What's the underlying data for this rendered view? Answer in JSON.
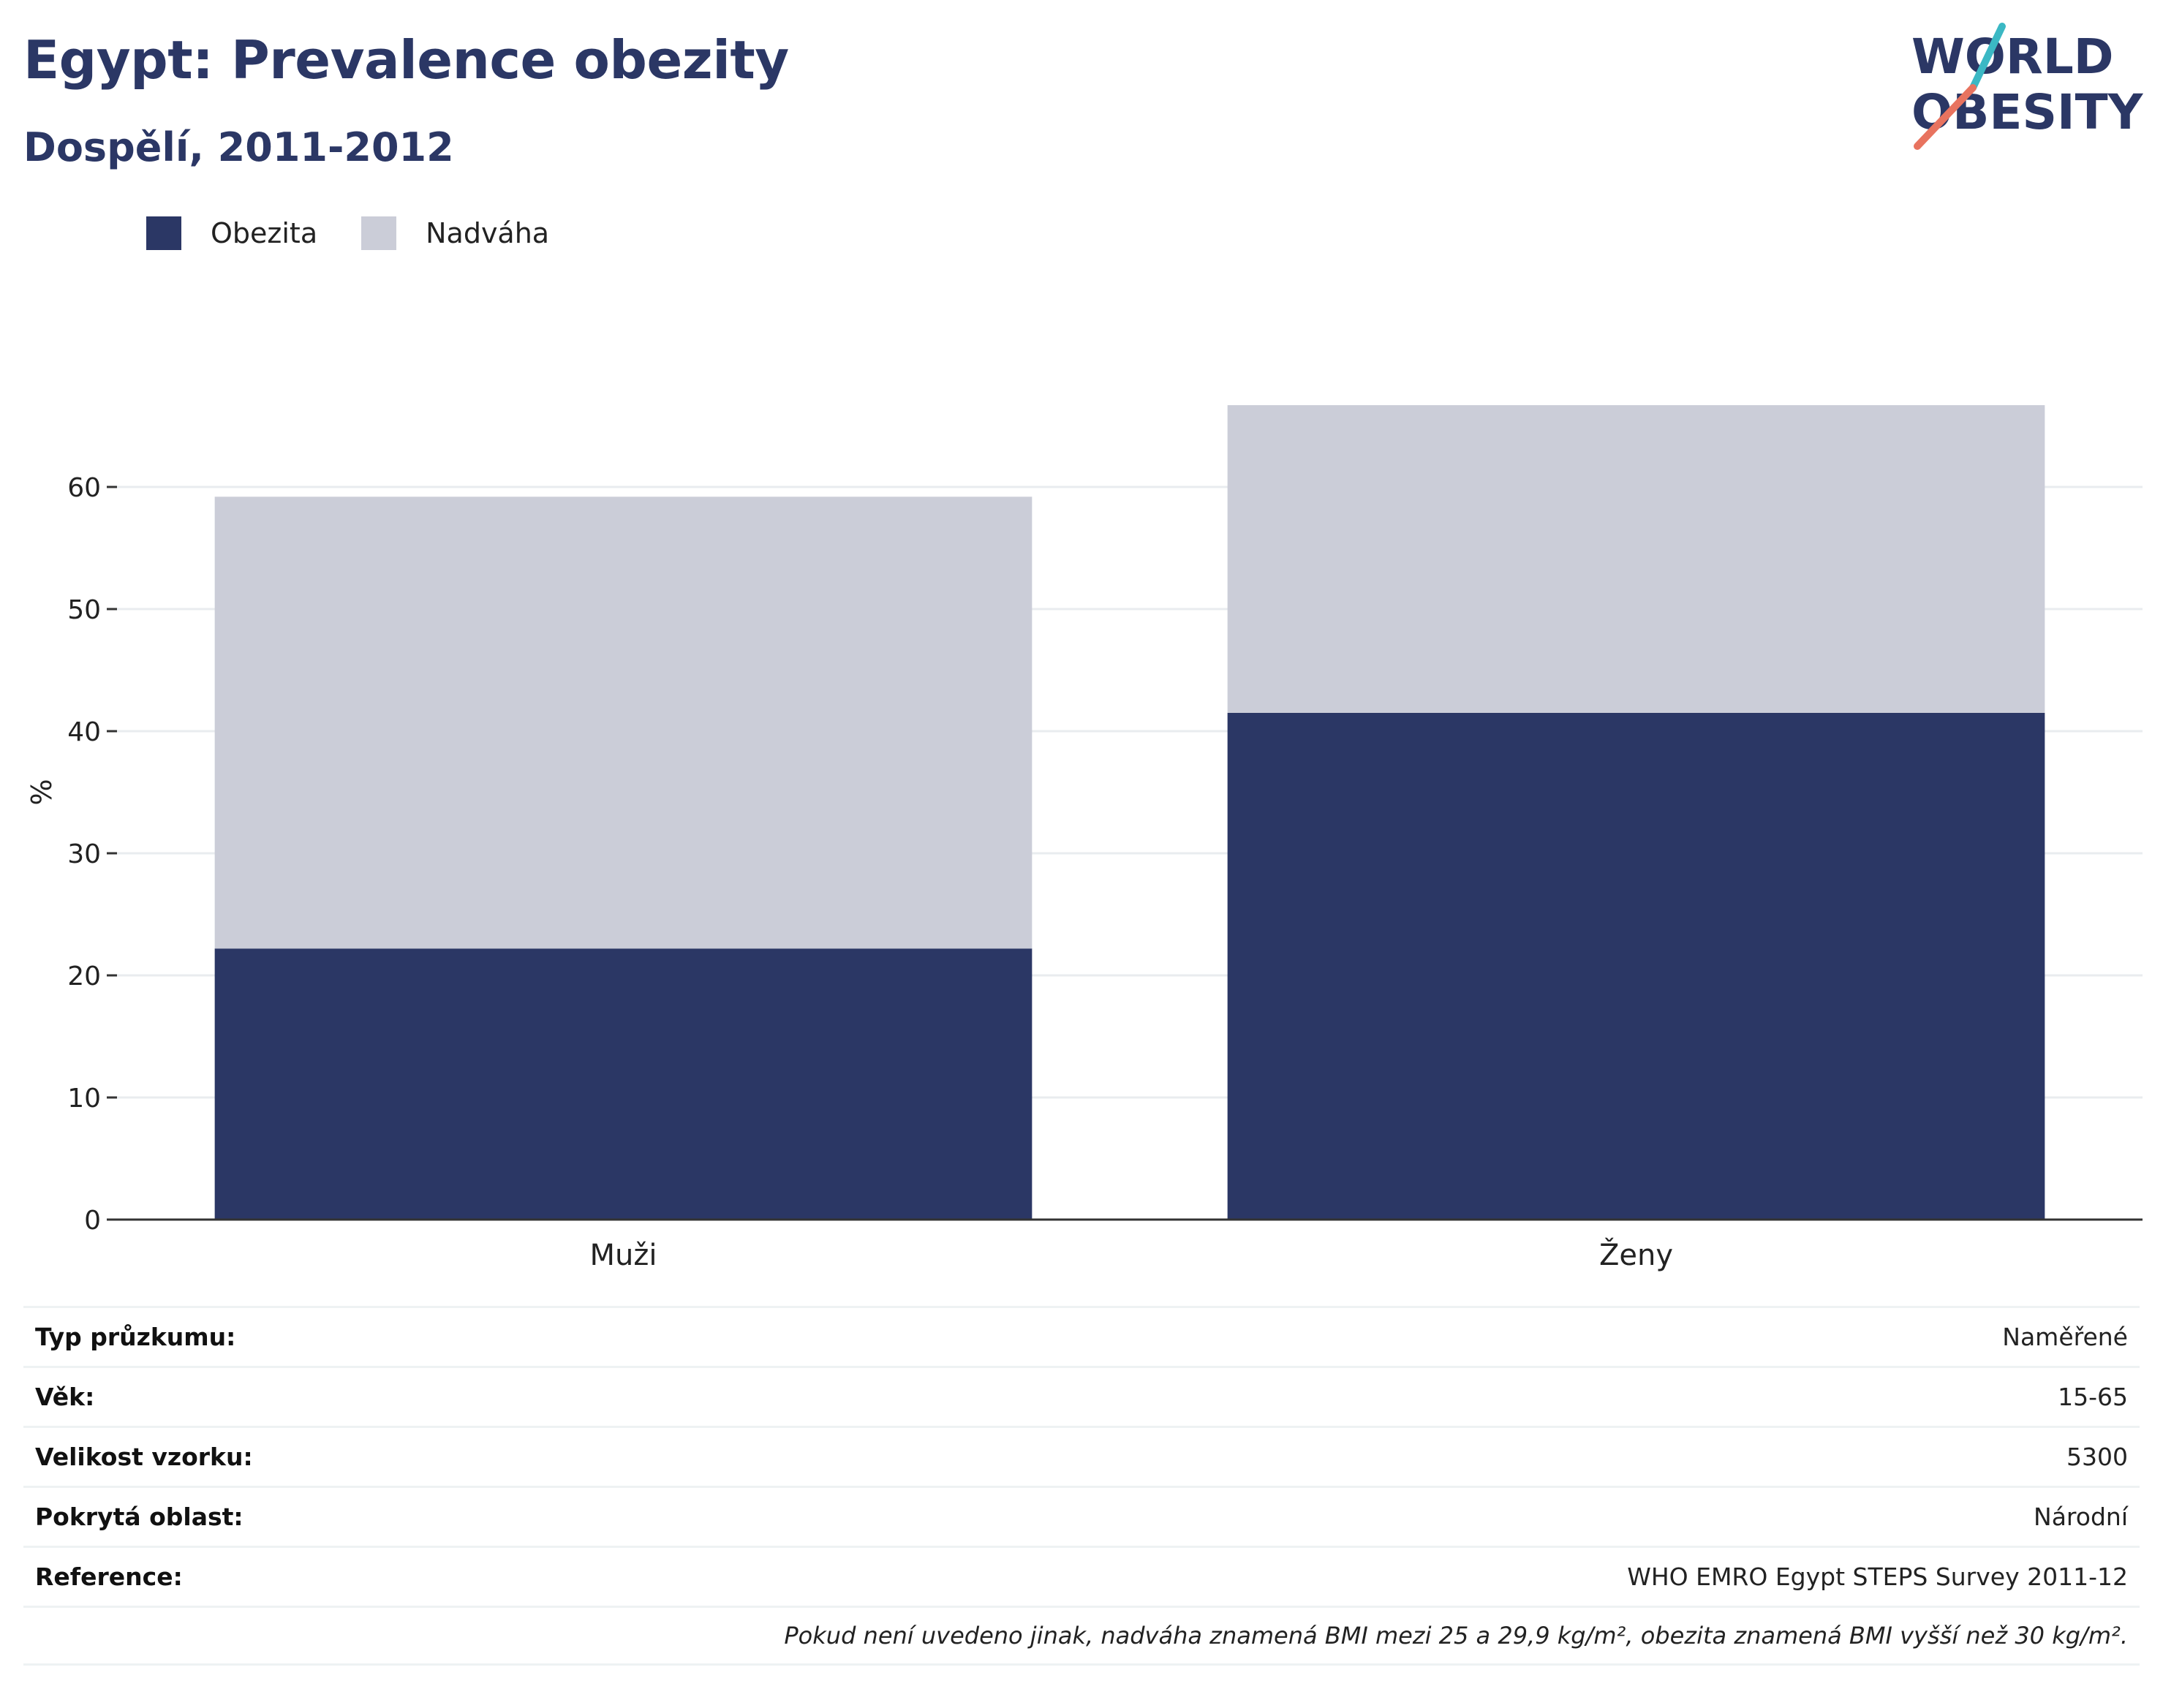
{
  "header": {
    "title": "Egypt: Prevalence obezity",
    "subtitle": "Dospělí, 2011-2012"
  },
  "logo": {
    "line1": "WORLD",
    "line2": "OBESITY"
  },
  "colors": {
    "obesity": "#2b3765",
    "overweight": "#cbcdd8",
    "accent_teal": "#3bb8c4",
    "accent_coral": "#e8735f"
  },
  "chart_data": {
    "type": "bar",
    "stacked": true,
    "categories": [
      "Muži",
      "Ženy"
    ],
    "series": [
      {
        "name": "Obezita",
        "values": [
          22.2,
          41.5
        ]
      },
      {
        "name": "Nadváha",
        "values": [
          37.0,
          25.2
        ]
      }
    ],
    "ylabel": "%",
    "ylim": [
      0,
      67
    ],
    "yticks": [
      0,
      10,
      20,
      30,
      40,
      50,
      60
    ],
    "grid": true,
    "legend": "top-left"
  },
  "info": [
    {
      "key": "Typ průzkumu:",
      "value": "Naměřené"
    },
    {
      "key": "Věk:",
      "value": "15-65"
    },
    {
      "key": "Velikost vzorku:",
      "value": "5300"
    },
    {
      "key": "Pokrytá oblast:",
      "value": "Národní"
    },
    {
      "key": "Reference:",
      "value": "WHO EMRO Egypt STEPS Survey 2011-12"
    }
  ],
  "note": "Pokud není uvedeno jinak, nadváha znamená BMI mezi 25 a 29,9 kg/m², obezita znamená BMI vyšší než 30 kg/m²."
}
